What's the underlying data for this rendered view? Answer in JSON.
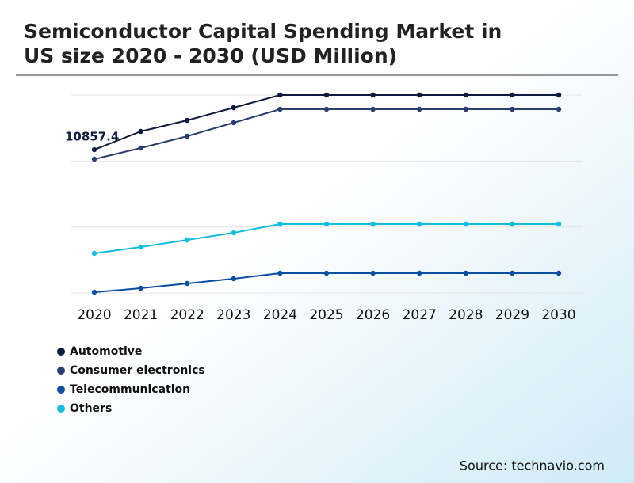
{
  "chart_data": {
    "type": "line",
    "title_lines": [
      "Semiconductor Capital Spending Market in",
      "US size 2020 - 2030 (USD Million)"
    ],
    "categories": [
      "2020",
      "2021",
      "2022",
      "2023",
      "2024",
      "2025",
      "2026",
      "2027",
      "2028",
      "2029",
      "2030"
    ],
    "series": [
      {
        "name": "Automotive",
        "color": "#0d1b3e",
        "values": [
          10857.4,
          12240,
          13080,
          14040,
          15000,
          15000,
          15000,
          15000,
          15000,
          15000,
          15000
        ]
      },
      {
        "name": "Consumer electronics",
        "color": "#2b3f6e",
        "values": [
          10140,
          10980,
          11880,
          12900,
          13920,
          13920,
          13920,
          13920,
          13920,
          13920,
          13920
        ]
      },
      {
        "name": "Telecommunication",
        "color": "#0a4fa0",
        "values": [
          60,
          360,
          720,
          1080,
          1500,
          1500,
          1500,
          1500,
          1500,
          1500,
          1500
        ]
      },
      {
        "name": "Others",
        "color": "#12bde0",
        "values": [
          3000,
          3480,
          4020,
          4560,
          5220,
          5220,
          5220,
          5220,
          5220,
          5220,
          5220
        ]
      }
    ],
    "ylim": [
      0,
      15000
    ],
    "yticks": [
      0,
      5000,
      10000,
      15000
    ],
    "grid": true,
    "source": "Source: technavio.com"
  }
}
